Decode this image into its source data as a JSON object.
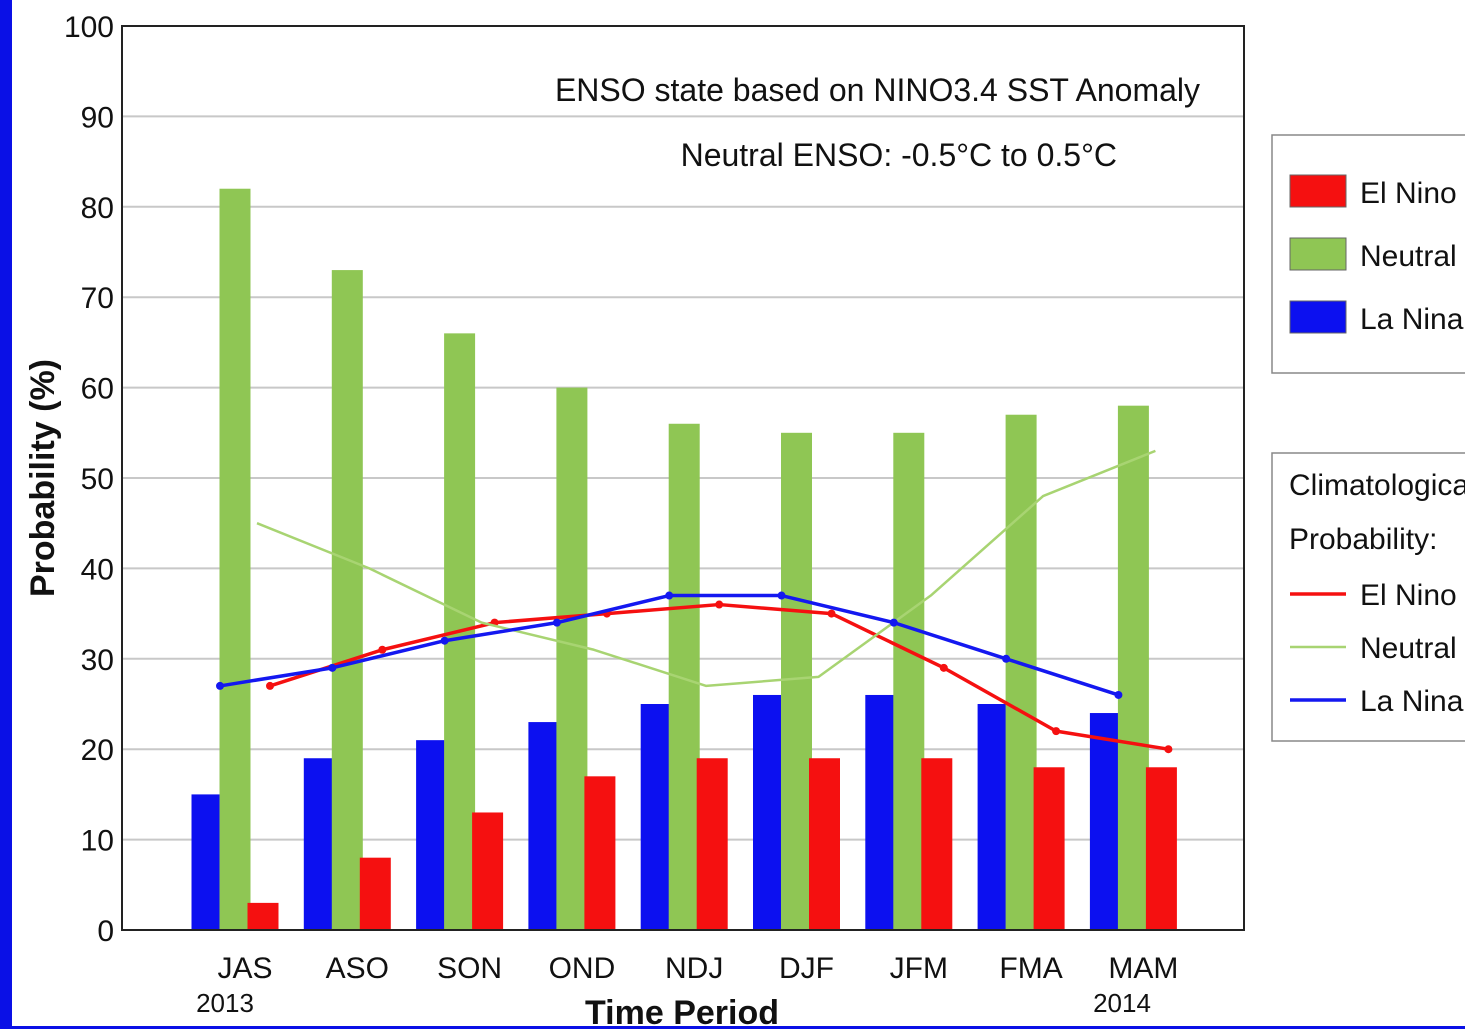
{
  "chart_data": {
    "type": "bar",
    "title": "",
    "annotations": [
      "ENSO state based on NINO3.4 SST Anomaly",
      "Neutral ENSO: -0.5°C to 0.5°C"
    ],
    "xlabel": "Time Period",
    "ylabel": "Probability (%)",
    "ylim": [
      0,
      100
    ],
    "yticks": [
      "0",
      "10",
      "20",
      "30",
      "40",
      "50",
      "60",
      "70",
      "80",
      "90",
      "100"
    ],
    "grid": "horizontal",
    "categories": [
      "JAS",
      "ASO",
      "SON",
      "OND",
      "NDJ",
      "DJF",
      "JFM",
      "FMA",
      "MAM"
    ],
    "year_labels": {
      "first": "2013",
      "last": "2014"
    },
    "series": [
      {
        "name": "La Nina",
        "color": "#0c10f0",
        "values": [
          15,
          19,
          21,
          23,
          25,
          26,
          26,
          25,
          24
        ]
      },
      {
        "name": "Neutral",
        "color": "#8fc654",
        "values": [
          82,
          73,
          66,
          60,
          56,
          55,
          55,
          57,
          58
        ]
      },
      {
        "name": "El Nino",
        "color": "#f51010",
        "values": [
          3,
          8,
          13,
          17,
          19,
          19,
          19,
          18,
          18
        ]
      }
    ],
    "climatology": [
      {
        "name": "El Nino",
        "color": "#f51010",
        "values": [
          27,
          31,
          34,
          35,
          36,
          35,
          29,
          22,
          20
        ]
      },
      {
        "name": "Neutral",
        "color": "#a8d472",
        "values": [
          45,
          40,
          34,
          31,
          27,
          28,
          37,
          48,
          53
        ]
      },
      {
        "name": "La Nina",
        "color": "#1418f0",
        "values": [
          27,
          29,
          32,
          34,
          37,
          37,
          34,
          30,
          26
        ]
      }
    ],
    "legend_placement": "right",
    "legend_bars": [
      "El Nino",
      "Neutral",
      "La Nina"
    ],
    "legend_climo_title": [
      "Climatological",
      "Probability:"
    ],
    "legend_lines": [
      "El Nino",
      "Neutral",
      "La Nina"
    ]
  }
}
